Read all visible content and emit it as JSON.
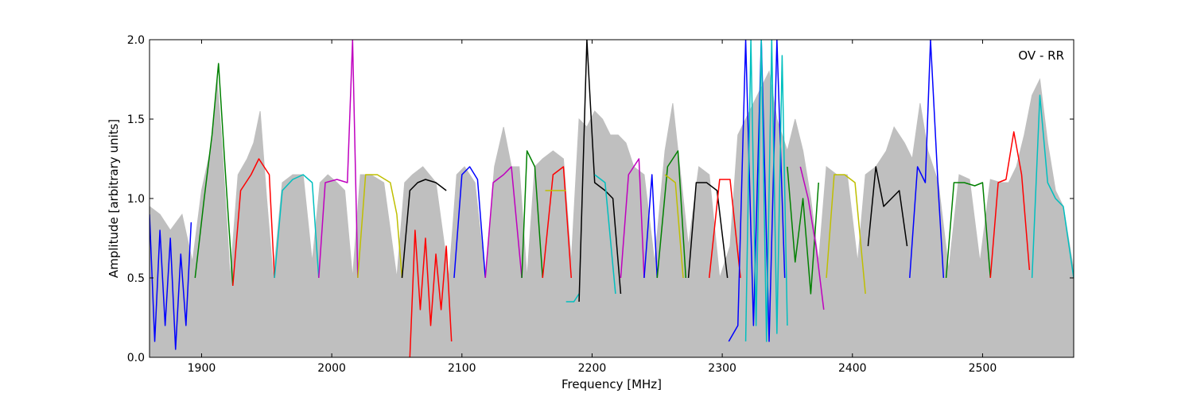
{
  "chart_data": {
    "type": "line",
    "title": "",
    "xlabel": "Frequency [MHz]",
    "ylabel": "Amplitude [arbitrary units]",
    "xlim": [
      1860,
      2570
    ],
    "ylim": [
      0.0,
      2.0
    ],
    "xticks": [
      1900,
      2000,
      2100,
      2200,
      2300,
      2400,
      2500
    ],
    "yticks": [
      0.0,
      0.5,
      1.0,
      1.5,
      2.0
    ],
    "ytick_labels": [
      "0.0",
      "0.5",
      "1.0",
      "1.5",
      "2.0"
    ],
    "grid": false,
    "annotation": "OV - RR",
    "background_series": {
      "color": "#bfbfbf",
      "x": [
        1860,
        1868,
        1876,
        1885,
        1893,
        1900,
        1908,
        1912,
        1916,
        1922,
        1928,
        1935,
        1940,
        1945,
        1950,
        1955,
        1962,
        1970,
        1978,
        1985,
        1991,
        1997,
        2004,
        2010,
        2016,
        2022,
        2030,
        2040,
        2050,
        2056,
        2062,
        2070,
        2080,
        2090,
        2096,
        2102,
        2110,
        2118,
        2125,
        2132,
        2138,
        2144,
        2150,
        2156,
        2162,
        2170,
        2178,
        2184,
        2190,
        2196,
        2202,
        2208,
        2214,
        2220,
        2226,
        2232,
        2240,
        2248,
        2256,
        2262,
        2268,
        2274,
        2282,
        2290,
        2298,
        2306,
        2312,
        2318,
        2324,
        2330,
        2336,
        2342,
        2350,
        2356,
        2362,
        2368,
        2374,
        2380,
        2388,
        2396,
        2404,
        2410,
        2418,
        2426,
        2432,
        2440,
        2446,
        2452,
        2458,
        2466,
        2474,
        2482,
        2490,
        2498,
        2506,
        2514,
        2520,
        2526,
        2532,
        2538,
        2544,
        2550,
        2556,
        2562,
        2570
      ],
      "y": [
        0.95,
        0.9,
        0.8,
        0.9,
        0.6,
        1.05,
        1.35,
        1.75,
        1.3,
        0.5,
        1.15,
        1.25,
        1.35,
        1.55,
        1.0,
        0.5,
        1.1,
        1.15,
        1.15,
        0.6,
        1.1,
        1.15,
        1.1,
        1.05,
        0.5,
        1.15,
        1.15,
        1.1,
        0.5,
        1.1,
        1.15,
        1.2,
        1.1,
        0.5,
        1.15,
        1.2,
        1.1,
        0.5,
        1.2,
        1.45,
        1.2,
        1.2,
        0.5,
        1.2,
        1.25,
        1.3,
        1.25,
        0.6,
        1.5,
        1.45,
        1.55,
        1.5,
        1.4,
        1.4,
        1.35,
        1.2,
        1.15,
        0.6,
        1.3,
        1.6,
        1.15,
        0.7,
        1.2,
        1.15,
        0.5,
        0.7,
        1.4,
        1.5,
        1.6,
        1.7,
        1.8,
        1.5,
        1.3,
        1.5,
        1.3,
        1.0,
        0.6,
        1.2,
        1.15,
        1.15,
        0.6,
        1.15,
        1.2,
        1.3,
        1.45,
        1.35,
        1.25,
        1.6,
        1.3,
        1.1,
        0.55,
        1.15,
        1.12,
        0.6,
        1.12,
        1.1,
        1.1,
        1.2,
        1.4,
        1.65,
        1.75,
        1.35,
        1.05,
        0.95,
        0.55
      ]
    },
    "series": [
      {
        "color": "#0000ff",
        "x": [
          1860,
          1864,
          1868,
          1872,
          1876,
          1880,
          1884,
          1888,
          1892
        ],
        "y": [
          0.9,
          0.1,
          0.8,
          0.2,
          0.75,
          0.05,
          0.65,
          0.2,
          0.85
        ]
      },
      {
        "color": "#008000",
        "x": [
          1895,
          1902,
          1908,
          1913,
          1918,
          1924
        ],
        "y": [
          0.5,
          1.0,
          1.4,
          1.85,
          1.2,
          0.45
        ]
      },
      {
        "color": "#ff0000",
        "x": [
          1924,
          1930,
          1938,
          1944,
          1948,
          1952,
          1956
        ],
        "y": [
          0.45,
          1.05,
          1.15,
          1.25,
          1.2,
          1.15,
          0.5
        ]
      },
      {
        "color": "#00bfbf",
        "x": [
          1956,
          1962,
          1970,
          1978,
          1985,
          1990
        ],
        "y": [
          0.5,
          1.05,
          1.12,
          1.15,
          1.1,
          0.5
        ]
      },
      {
        "color": "#bf00bf",
        "x": [
          1990,
          1995,
          2004,
          2012,
          2016,
          2020
        ],
        "y": [
          0.5,
          1.1,
          1.12,
          1.1,
          2.0,
          0.5
        ]
      },
      {
        "color": "#bfbf00",
        "x": [
          2020,
          2026,
          2035,
          2045,
          2050,
          2054
        ],
        "y": [
          0.5,
          1.15,
          1.15,
          1.1,
          0.9,
          0.5
        ]
      },
      {
        "color": "#000000",
        "x": [
          2054,
          2060,
          2066,
          2072,
          2080,
          2088
        ],
        "y": [
          0.5,
          1.05,
          1.1,
          1.12,
          1.1,
          1.05
        ]
      },
      {
        "color": "#ff0000",
        "x": [
          2060,
          2064,
          2068,
          2072,
          2076,
          2080,
          2084,
          2088,
          2092
        ],
        "y": [
          0.0,
          0.8,
          0.3,
          0.75,
          0.2,
          0.65,
          0.3,
          0.7,
          0.1
        ]
      },
      {
        "color": "#0000ff",
        "x": [
          2094,
          2100,
          2106,
          2112,
          2118
        ],
        "y": [
          0.5,
          1.15,
          1.2,
          1.12,
          0.5
        ]
      },
      {
        "color": "#bf00bf",
        "x": [
          2118,
          2124,
          2132,
          2138,
          2146
        ],
        "y": [
          0.5,
          1.1,
          1.15,
          1.2,
          0.5
        ]
      },
      {
        "color": "#008000",
        "x": [
          2146,
          2150,
          2156,
          2162
        ],
        "y": [
          0.5,
          1.3,
          1.2,
          0.5
        ]
      },
      {
        "color": "#ff0000",
        "x": [
          2162,
          2170,
          2178,
          2184
        ],
        "y": [
          0.5,
          1.15,
          1.2,
          0.5
        ]
      },
      {
        "color": "#bfbf00",
        "x": [
          2164,
          2172,
          2180
        ],
        "y": [
          1.05,
          1.05,
          1.05
        ]
      },
      {
        "color": "#00bfbf",
        "x": [
          2180,
          2186,
          2190
        ],
        "y": [
          0.35,
          0.35,
          0.4
        ]
      },
      {
        "color": "#000000",
        "x": [
          2190,
          2196,
          2202,
          2210,
          2216,
          2222
        ],
        "y": [
          0.35,
          2.0,
          1.1,
          1.05,
          1.0,
          0.4
        ]
      },
      {
        "color": "#00bfbf",
        "x": [
          2202,
          2210,
          2218
        ],
        "y": [
          1.15,
          1.1,
          0.4
        ]
      },
      {
        "color": "#bf00bf",
        "x": [
          2222,
          2228,
          2236,
          2240
        ],
        "y": [
          0.5,
          1.15,
          1.25,
          0.5
        ]
      },
      {
        "color": "#0000ff",
        "x": [
          2240,
          2246,
          2250
        ],
        "y": [
          0.5,
          1.15,
          0.5
        ]
      },
      {
        "color": "#008000",
        "x": [
          2250,
          2258,
          2266,
          2272
        ],
        "y": [
          0.5,
          1.2,
          1.3,
          0.5
        ]
      },
      {
        "color": "#bfbf00",
        "x": [
          2256,
          2264,
          2270
        ],
        "y": [
          1.15,
          1.1,
          0.5
        ]
      },
      {
        "color": "#000000",
        "x": [
          2274,
          2280,
          2288,
          2296,
          2304
        ],
        "y": [
          0.5,
          1.1,
          1.1,
          1.05,
          0.5
        ]
      },
      {
        "color": "#ff0000",
        "x": [
          2290,
          2298,
          2306,
          2314
        ],
        "y": [
          0.5,
          1.12,
          1.12,
          0.5
        ]
      },
      {
        "color": "#0000ff",
        "x": [
          2305,
          2312,
          2318,
          2324,
          2330,
          2336,
          2342,
          2348
        ],
        "y": [
          0.1,
          0.2,
          2.0,
          0.2,
          2.0,
          0.1,
          2.0,
          0.5
        ]
      },
      {
        "color": "#00bfbf",
        "x": [
          2318,
          2322,
          2326,
          2330,
          2334,
          2338,
          2342,
          2346,
          2350
        ],
        "y": [
          0.1,
          2.0,
          0.2,
          2.0,
          0.1,
          2.0,
          0.15,
          1.9,
          0.2
        ]
      },
      {
        "color": "#008000",
        "x": [
          2350,
          2356,
          2362,
          2368,
          2374
        ],
        "y": [
          1.2,
          0.6,
          1.0,
          0.4,
          1.1
        ]
      },
      {
        "color": "#bf00bf",
        "x": [
          2360,
          2366,
          2372,
          2378
        ],
        "y": [
          1.2,
          1.0,
          0.7,
          0.3
        ]
      },
      {
        "color": "#bfbf00",
        "x": [
          2380,
          2386,
          2394,
          2402,
          2410
        ],
        "y": [
          0.5,
          1.15,
          1.15,
          1.1,
          0.4
        ]
      },
      {
        "color": "#000000",
        "x": [
          2412,
          2418,
          2424,
          2430,
          2436,
          2442
        ],
        "y": [
          0.7,
          1.2,
          0.95,
          1.0,
          1.05,
          0.7
        ]
      },
      {
        "color": "#0000ff",
        "x": [
          2444,
          2450,
          2456,
          2460,
          2466,
          2470
        ],
        "y": [
          0.5,
          1.2,
          1.1,
          2.0,
          1.05,
          0.5
        ]
      },
      {
        "color": "#008000",
        "x": [
          2472,
          2478,
          2486,
          2494,
          2500,
          2506
        ],
        "y": [
          0.5,
          1.1,
          1.1,
          1.08,
          1.1,
          0.5
        ]
      },
      {
        "color": "#ff0000",
        "x": [
          2506,
          2512,
          2518,
          2524,
          2530,
          2536
        ],
        "y": [
          0.5,
          1.1,
          1.12,
          1.42,
          1.15,
          0.55
        ]
      },
      {
        "color": "#00bfbf",
        "x": [
          2538,
          2544,
          2550,
          2556,
          2562,
          2570
        ],
        "y": [
          0.5,
          1.65,
          1.1,
          1.0,
          0.95,
          0.5
        ]
      }
    ]
  }
}
